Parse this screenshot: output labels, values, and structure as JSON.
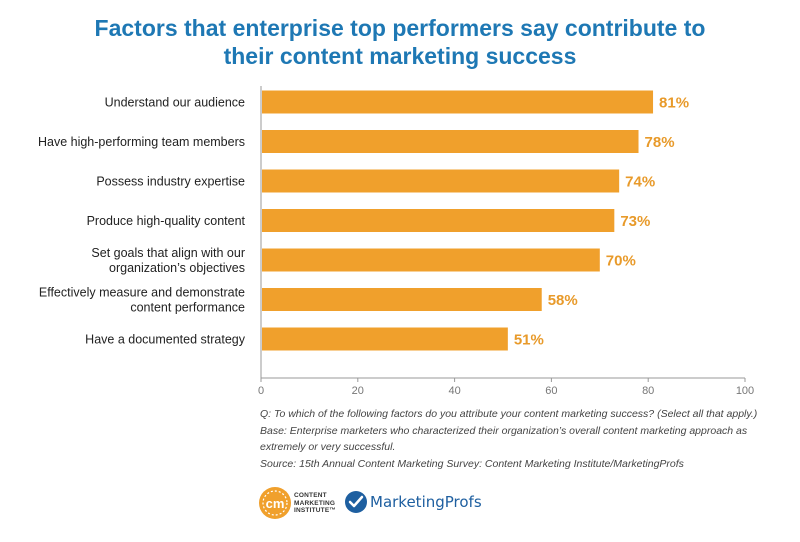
{
  "title_lines": [
    "Factors that enterprise top performers say contribute to",
    "their content marketing success"
  ],
  "colors": {
    "title": "#1e78b4",
    "bar": "#f0a02c",
    "value_label": "#e89a2a",
    "axis": "#999999",
    "category_text": "#222222"
  },
  "chart_data": {
    "type": "bar",
    "orientation": "horizontal",
    "title": "Factors that enterprise top performers say contribute to their content marketing success",
    "categories": [
      [
        "Understand our audience"
      ],
      [
        "Have high-performing team members"
      ],
      [
        "Possess industry expertise"
      ],
      [
        "Produce high-quality content"
      ],
      [
        "Set goals that align with our",
        "organization’s objectives"
      ],
      [
        "Effectively measure and demonstrate",
        "content performance"
      ],
      [
        "Have a documented strategy"
      ]
    ],
    "values": [
      81,
      78,
      74,
      73,
      70,
      58,
      51
    ],
    "value_labels": [
      "81%",
      "78%",
      "74%",
      "73%",
      "70%",
      "58%",
      "51%"
    ],
    "xlim": [
      0,
      100
    ],
    "xticks": [
      0,
      20,
      40,
      60,
      80,
      100
    ],
    "grid": false,
    "xlabel": "",
    "ylabel": ""
  },
  "notes": {
    "question": "Q: To which of the following factors do you attribute your content marketing success? (Select all that apply.)",
    "base": "Base: Enterprise marketers who characterized their organization’s overall content marketing approach as extremely or very successful.",
    "source": "Source: 15th Annual Content Marketing Survey: Content Marketing Institute/MarketingProfs"
  },
  "logos": {
    "cmi_mark": "cm",
    "cmi_lines": [
      "CONTENT",
      "MARKETING",
      "INSTITUTE™"
    ],
    "mp_name": "MarketingProfs"
  }
}
